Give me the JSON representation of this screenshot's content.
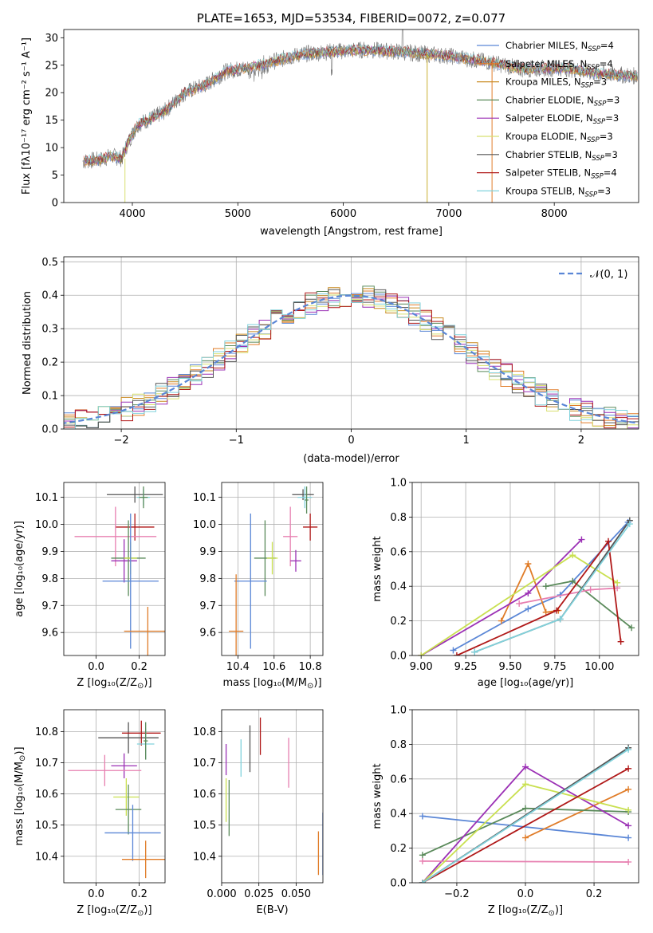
{
  "colors": {
    "cm_blue": "#5a86d6",
    "sm_orange": "#e07c28",
    "km_green": "#5a8a5a",
    "ce_purple": "#9b30b5",
    "se_pink": "#e77fb0",
    "ke_yellow": "#c9e050",
    "cs_gray": "#555555",
    "ss_red": "#b01818",
    "ks_cyan": "#80d2dc"
  },
  "chart_data": [
    {
      "id": "spectrum",
      "type": "line",
      "title": "PLATE=1653, MJD=53534, FIBERID=0072, z=0.077",
      "xlabel": "wavelength [Angstrom, rest frame]",
      "ylabel": "Flux [fλ10⁻¹⁷ erg cm⁻² s⁻¹ A⁻¹]",
      "xlim": [
        3350,
        8800
      ],
      "ylim": [
        0,
        31.5
      ],
      "xticks": [
        4000,
        5000,
        6000,
        7000,
        8000
      ],
      "yticks": [
        0,
        5,
        10,
        15,
        20,
        25,
        30
      ],
      "legend_position": "right",
      "series": [
        {
          "name": "Chabrier MILES, N_SSP=4",
          "label_main": "Chabrier MILES, N",
          "label_sub": "SSP",
          "label_tail": "=4",
          "color": "#5a86d6"
        },
        {
          "name": "Salpeter MILES, N_SSP=4",
          "label_main": "Salpeter MILES, N",
          "label_sub": "SSP",
          "label_tail": "=4",
          "color": "#e07c28"
        },
        {
          "name": "Kroupa MILES, N_SSP=3",
          "label_main": "Kroupa MILES, N",
          "label_sub": "SSP",
          "label_tail": "=3",
          "color": "#c98a20"
        },
        {
          "name": "Chabrier ELODIE, N_SSP=3",
          "label_main": "Chabrier ELODIE, N",
          "label_sub": "SSP",
          "label_tail": "=3",
          "color": "#5a8a5a"
        },
        {
          "name": "Salpeter ELODIE, N_SSP=3",
          "label_main": "Salpeter ELODIE, N",
          "label_sub": "SSP",
          "label_tail": "=3",
          "color": "#9b30b5"
        },
        {
          "name": "Kroupa ELODIE, N_SSP=3",
          "label_main": "Kroupa ELODIE, N",
          "label_sub": "SSP",
          "label_tail": "=3",
          "color": "#d8e070"
        },
        {
          "name": "Chabrier STELIB, N_SSP=3",
          "label_main": "Chabrier STELIB, N",
          "label_sub": "SSP",
          "label_tail": "=3",
          "color": "#555555"
        },
        {
          "name": "Salpeter STELIB, N_SSP=4",
          "label_main": "Salpeter STELIB, N",
          "label_sub": "SSP",
          "label_tail": "=4",
          "color": "#b01818"
        },
        {
          "name": "Kroupa STELIB, N_SSP=3",
          "label_main": "Kroupa STELIB, N",
          "label_sub": "SSP",
          "label_tail": "=3",
          "color": "#80d2dc"
        }
      ],
      "continuum_knots": [
        [
          3530,
          7.5
        ],
        [
          3700,
          7.8
        ],
        [
          3800,
          8.5
        ],
        [
          3900,
          8.0
        ],
        [
          3960,
          11.0
        ],
        [
          4050,
          14.2
        ],
        [
          4200,
          15.5
        ],
        [
          4300,
          16.5
        ],
        [
          4500,
          20.0
        ],
        [
          4700,
          21.5
        ],
        [
          4900,
          24.0
        ],
        [
          5100,
          24.5
        ],
        [
          5300,
          25.5
        ],
        [
          5600,
          27.0
        ],
        [
          5900,
          27.5
        ],
        [
          6200,
          27.8
        ],
        [
          6500,
          27.5
        ],
        [
          6800,
          27.0
        ],
        [
          7000,
          26.7
        ],
        [
          7400,
          25.5
        ],
        [
          7700,
          24.3
        ],
        [
          8100,
          24.5
        ],
        [
          8400,
          23.5
        ],
        [
          8800,
          23.0
        ]
      ]
    },
    {
      "id": "residuals",
      "type": "histogram",
      "xlabel": "(data-model)/error",
      "ylabel": "Normed distribution",
      "xlim": [
        -2.5,
        2.5
      ],
      "ylim": [
        0,
        0.515
      ],
      "xticks": [
        -2,
        -1,
        0,
        1,
        2
      ],
      "yticks": [
        0.0,
        0.1,
        0.2,
        0.3,
        0.4,
        0.5
      ],
      "bin_width": 0.1,
      "legend": {
        "label": "𝒩(0, 1)",
        "color": "#5a86d6",
        "position": "top-right"
      }
    },
    {
      "id": "age_vs_Z",
      "type": "errorbar",
      "xlabel_main": "Z [log₁₀(Z/Z",
      "xlabel_tail": ")]",
      "ylabel": "age  [log₁₀(age/yr)]",
      "xlim": [
        -0.15,
        0.32
      ],
      "ylim": [
        9.515,
        10.155
      ],
      "xticks": [
        0.0,
        0.2
      ],
      "xticklabels": [
        "0.0",
        "0.2"
      ],
      "yticks": [
        9.6,
        9.7,
        9.8,
        9.9,
        10.0,
        10.1
      ],
      "points": [
        {
          "c": "#555555",
          "x": 0.18,
          "y": 10.11,
          "xe": 0.13,
          "ye": 0.03
        },
        {
          "c": "#80d2dc",
          "x": 0.22,
          "y": 10.1,
          "xe": 0.03,
          "ye": 0.03
        },
        {
          "c": "#5a8a5a",
          "x": 0.22,
          "y": 10.1,
          "xe": 0.02,
          "ye": 0.04
        },
        {
          "c": "#b01818",
          "x": 0.18,
          "y": 9.99,
          "xe": 0.09,
          "ye": 0.05
        },
        {
          "c": "#e77fb0",
          "x": 0.09,
          "y": 9.955,
          "xe": 0.19,
          "ye": 0.11
        },
        {
          "c": "#9b30b5",
          "x": 0.13,
          "y": 9.865,
          "xe": 0.06,
          "ye": 0.08
        },
        {
          "c": "#5a8a5a",
          "x": 0.15,
          "y": 9.875,
          "xe": 0.08,
          "ye": 0.14
        },
        {
          "c": "#c9e050",
          "x": 0.16,
          "y": 9.875,
          "xe": 0.03,
          "ye": 0.06
        },
        {
          "c": "#5a86d6",
          "x": 0.16,
          "y": 9.79,
          "xe": 0.13,
          "ye": 0.25
        },
        {
          "c": "#e07c28",
          "x": 0.24,
          "y": 9.605,
          "xe": 0.11,
          "ye": 0.09
        }
      ]
    },
    {
      "id": "age_vs_mass",
      "type": "errorbar",
      "xlabel_main": "mass [log₁₀(M/M",
      "xlabel_tail": ")]",
      "xlim": [
        10.31,
        10.87
      ],
      "ylim": [
        9.515,
        10.155
      ],
      "xticks": [
        10.4,
        10.6,
        10.8
      ],
      "xticklabels": [
        "10.4",
        "10.6",
        "10.8"
      ],
      "yticks": [
        9.6,
        9.7,
        9.8,
        9.9,
        10.0,
        10.1
      ],
      "points": [
        {
          "c": "#555555",
          "x": 10.76,
          "y": 10.11,
          "xe": 0.06,
          "ye": 0.02
        },
        {
          "c": "#80d2dc",
          "x": 10.77,
          "y": 10.1,
          "xe": 0.04,
          "ye": 0.04
        },
        {
          "c": "#5a8a5a",
          "x": 10.78,
          "y": 10.09,
          "xe": 0.01,
          "ye": 0.05
        },
        {
          "c": "#b01818",
          "x": 10.8,
          "y": 9.99,
          "xe": 0.04,
          "ye": 0.05
        },
        {
          "c": "#e77fb0",
          "x": 10.69,
          "y": 9.955,
          "xe": 0.04,
          "ye": 0.11
        },
        {
          "c": "#9b30b5",
          "x": 10.72,
          "y": 9.865,
          "xe": 0.03,
          "ye": 0.04
        },
        {
          "c": "#5a8a5a",
          "x": 10.55,
          "y": 9.875,
          "xe": 0.06,
          "ye": 0.14
        },
        {
          "c": "#c9e050",
          "x": 10.59,
          "y": 9.875,
          "xe": 0.03,
          "ye": 0.06
        },
        {
          "c": "#5a86d6",
          "x": 10.47,
          "y": 9.79,
          "xe": 0.09,
          "ye": 0.25
        },
        {
          "c": "#e07c28",
          "x": 10.39,
          "y": 9.605,
          "xe": 0.04,
          "ye": 0.21
        }
      ]
    },
    {
      "id": "mw_vs_age",
      "type": "line",
      "xlabel": "age  [log₁₀(age/yr)]",
      "ylabel": "mass weight",
      "xlim": [
        8.95,
        10.22
      ],
      "ylim": [
        0,
        1.0
      ],
      "xticks": [
        9.0,
        9.5,
        10.0
      ],
      "xticklabels": [
        "9.00",
        "9.25",
        "9.50",
        "9.75",
        "10.00"
      ],
      "xticks_full": [
        9.0,
        9.25,
        9.5,
        9.75,
        10.0
      ],
      "yticks": [
        0.0,
        0.2,
        0.4,
        0.6,
        0.8,
        1.0
      ],
      "series": [
        {
          "c": "#5a86d6",
          "pts": [
            [
              9.18,
              0.03
            ],
            [
              9.6,
              0.27
            ],
            [
              9.78,
              0.35
            ],
            [
              10.16,
              0.77
            ]
          ]
        },
        {
          "c": "#e07c28",
          "pts": [
            [
              9.45,
              0.2
            ],
            [
              9.6,
              0.53
            ],
            [
              9.7,
              0.25
            ],
            [
              9.77,
              0.26
            ]
          ]
        },
        {
          "c": "#5a8a5a",
          "pts": [
            [
              9.7,
              0.4
            ],
            [
              9.85,
              0.43
            ],
            [
              10.18,
              0.16
            ]
          ]
        },
        {
          "c": "#9b30b5",
          "pts": [
            [
              9.0,
              0.0
            ],
            [
              9.6,
              0.36
            ],
            [
              9.9,
              0.67
            ]
          ]
        },
        {
          "c": "#e77fb0",
          "pts": [
            [
              9.55,
              0.3
            ],
            [
              9.95,
              0.38
            ],
            [
              10.1,
              0.39
            ]
          ]
        },
        {
          "c": "#c9e050",
          "pts": [
            [
              9.0,
              0.0
            ],
            [
              9.85,
              0.58
            ],
            [
              10.1,
              0.42
            ]
          ]
        },
        {
          "c": "#555555",
          "pts": [
            [
              9.3,
              0.02
            ],
            [
              9.78,
              0.21
            ],
            [
              10.17,
              0.78
            ]
          ]
        },
        {
          "c": "#b01818",
          "pts": [
            [
              9.2,
              0.0
            ],
            [
              9.76,
              0.26
            ],
            [
              10.05,
              0.66
            ],
            [
              10.12,
              0.08
            ]
          ]
        },
        {
          "c": "#80d2dc",
          "pts": [
            [
              9.3,
              0.02
            ],
            [
              9.78,
              0.21
            ],
            [
              10.17,
              0.76
            ]
          ]
        }
      ]
    },
    {
      "id": "mass_vs_Z",
      "type": "errorbar",
      "xlabel_main": "Z [log₁₀(Z/Z",
      "xlabel_tail": ")]",
      "ylabel_main": "mass [log₁₀(M/M",
      "ylabel_tail": ")]",
      "xlim": [
        -0.15,
        0.32
      ],
      "ylim": [
        10.315,
        10.87
      ],
      "xticks": [
        0.0,
        0.2
      ],
      "xticklabels": [
        "0.0",
        "0.2"
      ],
      "yticks": [
        10.4,
        10.5,
        10.6,
        10.7,
        10.8
      ],
      "points": [
        {
          "c": "#555555",
          "x": 0.15,
          "y": 10.78,
          "xe": 0.14,
          "ye": 0.05
        },
        {
          "c": "#b01818",
          "x": 0.21,
          "y": 10.795,
          "xe": 0.09,
          "ye": 0.04
        },
        {
          "c": "#80d2dc",
          "x": 0.23,
          "y": 10.76,
          "xe": 0.04,
          "ye": 0.05
        },
        {
          "c": "#5a8a5a",
          "x": 0.23,
          "y": 10.77,
          "xe": 0.01,
          "ye": 0.06
        },
        {
          "c": "#9b30b5",
          "x": 0.13,
          "y": 10.69,
          "xe": 0.06,
          "ye": 0.04
        },
        {
          "c": "#e77fb0",
          "x": 0.04,
          "y": 10.675,
          "xe": 0.17,
          "ye": 0.05
        },
        {
          "c": "#c9e050",
          "x": 0.14,
          "y": 10.59,
          "xe": 0.06,
          "ye": 0.06
        },
        {
          "c": "#5a8a5a",
          "x": 0.15,
          "y": 10.55,
          "xe": 0.06,
          "ye": 0.08
        },
        {
          "c": "#5a86d6",
          "x": 0.17,
          "y": 10.475,
          "xe": 0.13,
          "ye": 0.09
        },
        {
          "c": "#e07c28",
          "x": 0.23,
          "y": 10.39,
          "xe": 0.11,
          "ye": 0.06
        }
      ]
    },
    {
      "id": "mass_vs_EBV",
      "type": "errorbar",
      "xlabel": "E(B-V)",
      "xlim": [
        0.0,
        0.068
      ],
      "ylim": [
        10.315,
        10.87
      ],
      "xticks": [
        0.0,
        0.025,
        0.05
      ],
      "xticklabels": [
        "0.000",
        "0.025",
        "0.050"
      ],
      "yticks": [
        10.4,
        10.5,
        10.6,
        10.7,
        10.8
      ],
      "points": [
        {
          "c": "#9b30b5",
          "x": 0.003,
          "y": 10.71,
          "xe": 0,
          "ye": 0.05
        },
        {
          "c": "#c9e050",
          "x": 0.003,
          "y": 10.58,
          "xe": 0,
          "ye": 0.07
        },
        {
          "c": "#5a8a5a",
          "x": 0.005,
          "y": 10.555,
          "xe": 0,
          "ye": 0.09
        },
        {
          "c": "#80d2dc",
          "x": 0.013,
          "y": 10.715,
          "xe": 0,
          "ye": 0.06
        },
        {
          "c": "#555555",
          "x": 0.019,
          "y": 10.745,
          "xe": 0,
          "ye": 0.075
        },
        {
          "c": "#b01818",
          "x": 0.026,
          "y": 10.785,
          "xe": 0,
          "ye": 0.06
        },
        {
          "c": "#e77fb0",
          "x": 0.045,
          "y": 10.7,
          "xe": 0,
          "ye": 0.08
        },
        {
          "c": "#e07c28",
          "x": 0.065,
          "y": 10.41,
          "xe": 0,
          "ye": 0.07
        },
        {
          "c": "#5a86d6",
          "x": 0.068,
          "y": 10.44,
          "xe": 0,
          "ye": 0.1
        }
      ]
    },
    {
      "id": "mw_vs_Z",
      "type": "line",
      "xlabel_main": "Z [log₁₀(Z/Z",
      "xlabel_tail": ")]",
      "ylabel": "mass weight",
      "xlim": [
        -0.33,
        0.33
      ],
      "ylim": [
        0,
        1.0
      ],
      "xticks": [
        -0.2,
        0.0,
        0.2
      ],
      "xticklabels": [
        "−0.2",
        "0.0",
        "0.2"
      ],
      "yticks": [
        0.0,
        0.2,
        0.4,
        0.6,
        0.8,
        1.0
      ],
      "series": [
        {
          "c": "#5a86d6",
          "pts": [
            [
              -0.3,
              0.385
            ],
            [
              0.3,
              0.26
            ]
          ]
        },
        {
          "c": "#e07c28",
          "pts": [
            [
              0.0,
              0.26
            ],
            [
              0.3,
              0.54
            ]
          ]
        },
        {
          "c": "#5a8a5a",
          "pts": [
            [
              -0.3,
              0.16
            ],
            [
              0.0,
              0.43
            ],
            [
              0.3,
              0.41
            ]
          ]
        },
        {
          "c": "#9b30b5",
          "pts": [
            [
              -0.3,
              0.0
            ],
            [
              0.0,
              0.67
            ],
            [
              0.3,
              0.33
            ]
          ]
        },
        {
          "c": "#e77fb0",
          "pts": [
            [
              -0.3,
              0.125
            ],
            [
              0.3,
              0.12
            ]
          ]
        },
        {
          "c": "#c9e050",
          "pts": [
            [
              -0.3,
              0.0
            ],
            [
              0.0,
              0.57
            ],
            [
              0.3,
              0.42
            ]
          ]
        },
        {
          "c": "#555555",
          "pts": [
            [
              -0.3,
              0.0
            ],
            [
              0.3,
              0.78
            ]
          ]
        },
        {
          "c": "#b01818",
          "pts": [
            [
              -0.3,
              0.0
            ],
            [
              0.3,
              0.66
            ]
          ]
        },
        {
          "c": "#80d2dc",
          "pts": [
            [
              -0.3,
              0.0
            ],
            [
              0.3,
              0.77
            ]
          ]
        }
      ]
    }
  ]
}
